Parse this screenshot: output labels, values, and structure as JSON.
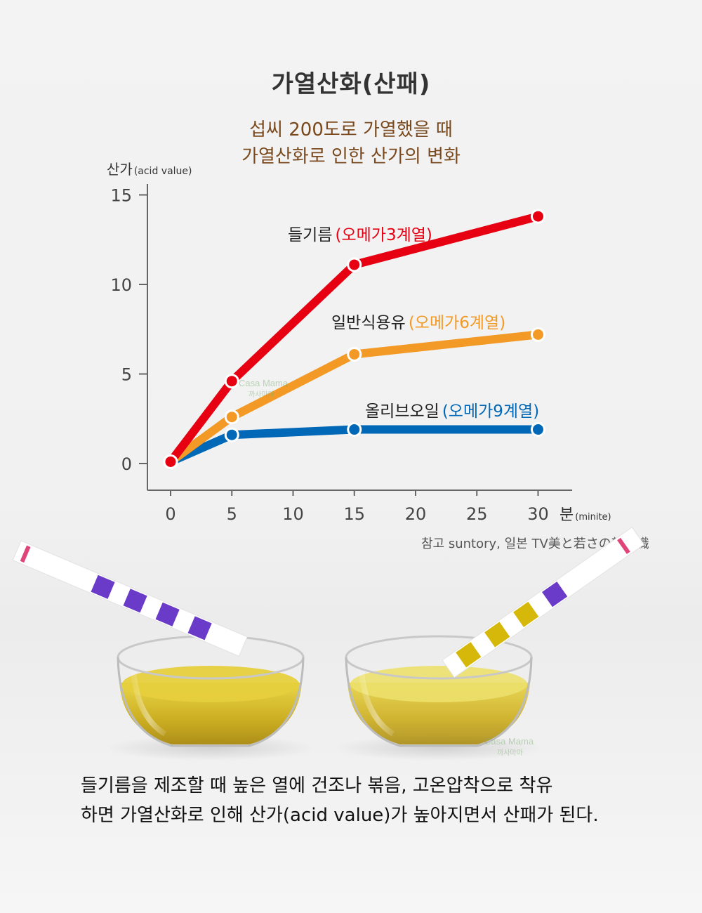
{
  "title": "가열산화(산패)",
  "subtitle": {
    "line1": "섭씨 200도로 가열했을 때",
    "line2": "가열산화로 인한 산가의 변화"
  },
  "reference_note": "참고 suntory, 일본 TV美と若さの新常識",
  "caption": {
    "line1": "들기름을 제조할 때 높은 열에 건조나 볶음, 고온압착으로 착유",
    "line2": "하면 가열산화로 인해 산가(acid value)가 높아지면서 산패가 된다."
  },
  "watermark": {
    "brand": "Casa Mama",
    "sub": "까사마마"
  },
  "colors": {
    "perilla": "#e60012",
    "soybean": "#f39a26",
    "olive": "#0068b7",
    "axis": "#666666",
    "subtitle": "#7a4a1e"
  },
  "chart_data": {
    "type": "line",
    "ylabel_main": "산가",
    "ylabel_unit": "(acid value)",
    "xlabel_main": "분",
    "xlabel_unit": "(minite)",
    "xlim": [
      0,
      32
    ],
    "ylim": [
      0,
      15
    ],
    "x_ticks": [
      0,
      5,
      10,
      15,
      20,
      25,
      30
    ],
    "y_ticks": [
      0,
      5,
      10,
      15
    ],
    "series": [
      {
        "name_main": "들기름",
        "name_sub": "(오메가3계열)",
        "color": "#e60012",
        "x": [
          0,
          5,
          15,
          30
        ],
        "y": [
          0.1,
          4.6,
          11.1,
          13.8
        ]
      },
      {
        "name_main": "일반식용유",
        "name_sub": "(오메가6계열)",
        "color": "#f39a26",
        "x": [
          0,
          5,
          15,
          30
        ],
        "y": [
          0.1,
          2.6,
          6.1,
          7.2
        ]
      },
      {
        "name_main": "올리브오일",
        "name_sub": "(오메가9계열)",
        "color": "#0068b7",
        "x": [
          0,
          5,
          15,
          30
        ],
        "y": [
          0.1,
          1.6,
          1.9,
          1.9
        ]
      }
    ]
  }
}
